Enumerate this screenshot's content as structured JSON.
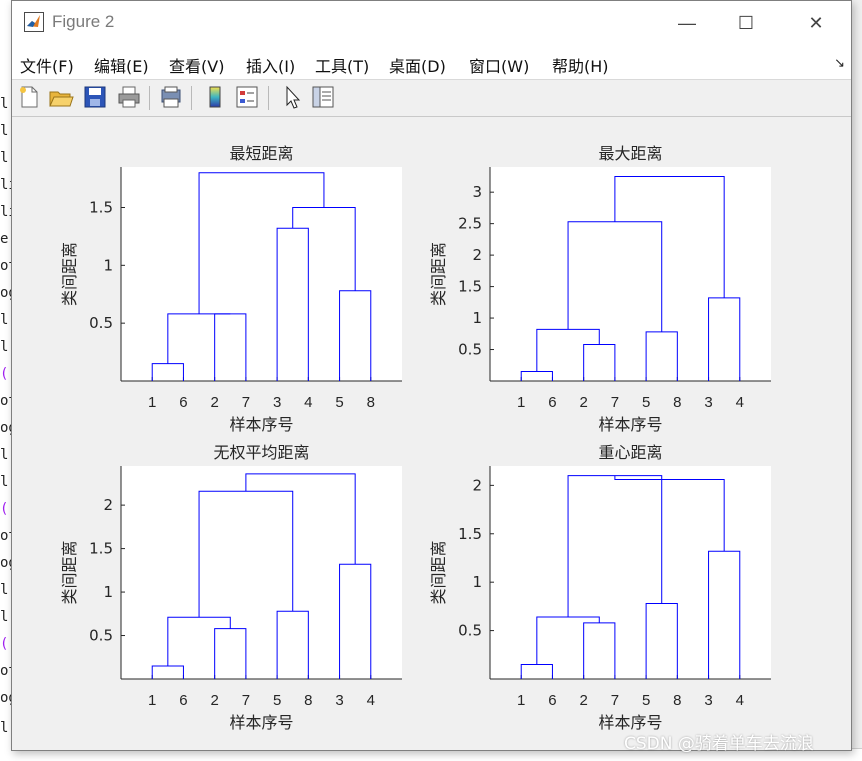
{
  "background_code_lines": [
    "l",
    "l",
    "l",
    "li",
    "li",
    "e:",
    "ot",
    "og",
    "l(",
    "l(",
    "('",
    "ot",
    "og",
    "l(",
    "l(",
    "('",
    "ot",
    "og",
    "l(",
    "l(",
    "('",
    "ot",
    "og",
    "l('样本序号')"
  ],
  "window": {
    "title": "Figure 2",
    "controls": {
      "minimize": "—",
      "maximize": "☐",
      "close": "✕"
    }
  },
  "menu": [
    "文件(F)",
    "编辑(E)",
    "查看(V)",
    "插入(I)",
    "工具(T)",
    "桌面(D)",
    "窗口(W)",
    "帮助(H)"
  ],
  "dock_arrow": "↘",
  "toolbar": [
    "new-figure-icon",
    "open-file-icon",
    "save-icon",
    "print-icon",
    "print-preview-icon",
    "colorbar-icon",
    "legend-icon",
    "select-pointer-icon",
    "property-inspector-icon"
  ],
  "colors": {
    "dendrogram": "#0000ff",
    "axes": "#262626",
    "figure_bg": "#f0f0f0",
    "axes_bg": "#ffffff"
  },
  "chart_data": [
    {
      "type": "dendrogram",
      "title": "最短距离",
      "xlabel": "样本序号",
      "ylabel": "类间距离",
      "leaf_order": [
        "1",
        "6",
        "2",
        "7",
        "3",
        "4",
        "5",
        "8"
      ],
      "ylim": [
        0,
        1.85
      ],
      "yticks": [
        0.5,
        1,
        1.5
      ],
      "ytick_labels": [
        "0.5",
        "1",
        "1.5"
      ],
      "merges": [
        {
          "left": "1",
          "right": "6",
          "height": 0.15
        },
        {
          "left": "2",
          "right": "7",
          "height": 0.58
        },
        {
          "left": "1-6",
          "right": "2-7",
          "height": 0.58
        },
        {
          "left": "3",
          "right": "4",
          "height": 1.32
        },
        {
          "left": "5",
          "right": "8",
          "height": 0.78
        },
        {
          "left": "3-4",
          "right": "5-8",
          "height": 1.5
        },
        {
          "left": "1-6-2-7",
          "right": "3-4-5-8",
          "height": 1.8
        }
      ]
    },
    {
      "type": "dendrogram",
      "title": "最大距离",
      "xlabel": "样本序号",
      "ylabel": "类间距离",
      "leaf_order": [
        "1",
        "6",
        "2",
        "7",
        "5",
        "8",
        "3",
        "4"
      ],
      "ylim": [
        0,
        3.4
      ],
      "yticks": [
        0.5,
        1,
        1.5,
        2,
        2.5,
        3
      ],
      "ytick_labels": [
        "0.5",
        "1",
        "1.5",
        "2",
        "2.5",
        "3"
      ],
      "merges": [
        {
          "left": "1",
          "right": "6",
          "height": 0.15
        },
        {
          "left": "2",
          "right": "7",
          "height": 0.58
        },
        {
          "left": "1-6",
          "right": "2-7",
          "height": 0.82
        },
        {
          "left": "5",
          "right": "8",
          "height": 0.78
        },
        {
          "left": "1-6-2-7",
          "right": "5-8",
          "height": 2.53
        },
        {
          "left": "3",
          "right": "4",
          "height": 1.32
        },
        {
          "left": "1-6-2-7-5-8",
          "right": "3-4",
          "height": 3.25
        }
      ]
    },
    {
      "type": "dendrogram",
      "title": "无权平均距离",
      "xlabel": "样本序号",
      "ylabel": "类间距离",
      "leaf_order": [
        "1",
        "6",
        "2",
        "7",
        "5",
        "8",
        "3",
        "4"
      ],
      "ylim": [
        0,
        2.45
      ],
      "yticks": [
        0.5,
        1,
        1.5,
        2
      ],
      "ytick_labels": [
        "0.5",
        "1",
        "1.5",
        "2"
      ],
      "merges": [
        {
          "left": "1",
          "right": "6",
          "height": 0.15
        },
        {
          "left": "2",
          "right": "7",
          "height": 0.58
        },
        {
          "left": "1-6",
          "right": "2-7",
          "height": 0.71
        },
        {
          "left": "5",
          "right": "8",
          "height": 0.78
        },
        {
          "left": "1-6-2-7",
          "right": "5-8",
          "height": 2.16
        },
        {
          "left": "3",
          "right": "4",
          "height": 1.32
        },
        {
          "left": "1-6-2-7-5-8",
          "right": "3-4",
          "height": 2.36
        }
      ]
    },
    {
      "type": "dendrogram",
      "title": "重心距离",
      "xlabel": "样本序号",
      "ylabel": "类间距离",
      "leaf_order": [
        "1",
        "6",
        "2",
        "7",
        "5",
        "8",
        "3",
        "4"
      ],
      "ylim": [
        0,
        2.2
      ],
      "yticks": [
        0.5,
        1,
        1.5,
        2
      ],
      "ytick_labels": [
        "0.5",
        "1",
        "1.5",
        "2"
      ],
      "merges": [
        {
          "left": "1",
          "right": "6",
          "height": 0.15
        },
        {
          "left": "2",
          "right": "7",
          "height": 0.58
        },
        {
          "left": "1-6",
          "right": "2-7",
          "height": 0.64
        },
        {
          "left": "5",
          "right": "8",
          "height": 0.78
        },
        {
          "left": "1-6-2-7",
          "right": "5-8",
          "height": 2.1
        },
        {
          "left": "3",
          "right": "4",
          "height": 1.32
        },
        {
          "left": "1-6-2-7-5-8",
          "right": "3-4",
          "height": 2.06
        }
      ]
    }
  ],
  "watermark": "CSDN @骑着单车去流浪"
}
